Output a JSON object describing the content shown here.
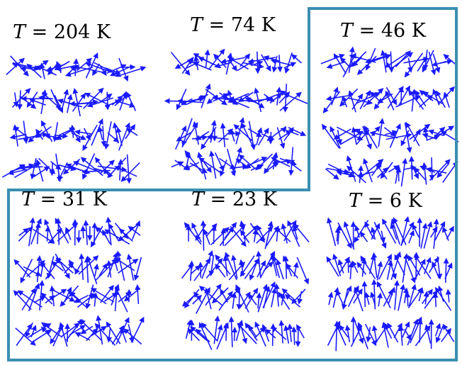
{
  "outline_color": "#3a8fb0",
  "arrow_color": "#1a1aff",
  "panels": [
    {
      "symbol": "T",
      "value": "= 204 K"
    },
    {
      "symbol": "T",
      "value": "= 74 K"
    },
    {
      "symbol": "T",
      "value": "= 46 K"
    },
    {
      "symbol": "T",
      "value": "= 31 K"
    },
    {
      "symbol": "T",
      "value": "= 23 K"
    },
    {
      "symbol": "T",
      "value": "= 6 K"
    }
  ]
}
